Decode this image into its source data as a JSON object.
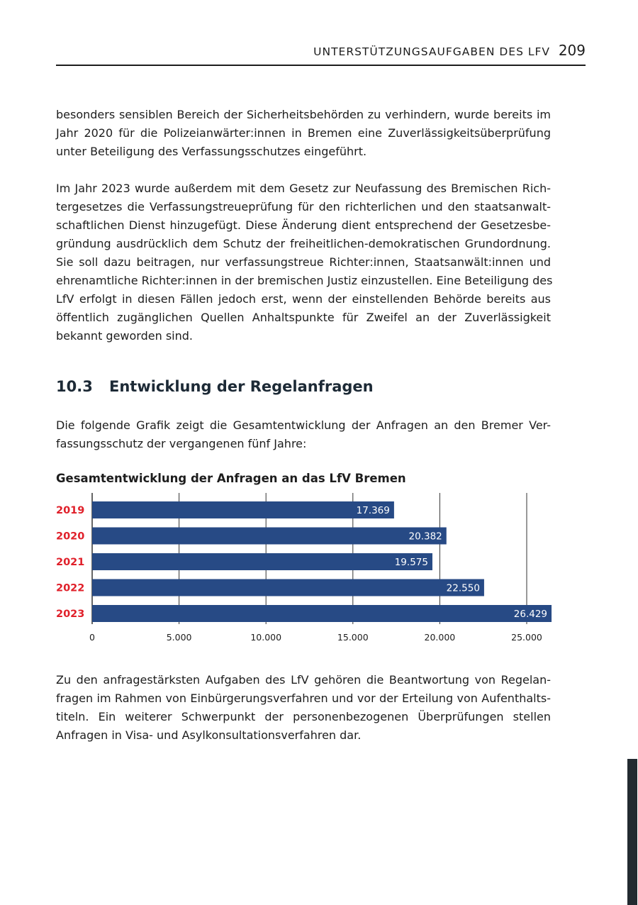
{
  "header": {
    "title": "UNTERSTÜTZUNGSAUFGABEN DES LFV",
    "page": "209"
  },
  "paragraphs": [
    [
      "besonders sensiblen Bereich der Sicherheitsbehörden zu verhindern, wurde bereits im",
      "Jahr 2020 für die Polizeianwärter:innen in Bremen eine Zuverlässigkeitsüberprüfung",
      "unter Beteiligung des Verfassungsschutzes eingeführt."
    ],
    [
      "Im Jahr 2023 wurde außerdem mit dem Gesetz zur Neufassung des Bremischen Rich-",
      "tergesetzes die Verfassungstreueprüfung für den richterlichen und den staatsanwalt-",
      "schaftlichen Dienst hinzugefügt. Diese Änderung dient entsprechend der Gesetzesbe-",
      "gründung ausdrücklich dem Schutz der freiheitlichen-demokratischen Grundordnung.",
      "Sie soll dazu beitragen, nur verfassungstreue Richter:innen, Staatsanwält:innen und",
      "ehrenamtliche Richter:innen in der bremischen Justiz einzustellen. Eine Beteiligung des",
      "LfV erfolgt in diesen Fällen jedoch erst, wenn der einstellenden Behörde bereits aus",
      "öffentlich zugänglichen Quellen Anhaltspunkte für Zweifel an der Zuverlässigkeit",
      "bekannt geworden sind."
    ],
    [
      "Die folgende Grafik zeigt die Gesamtentwicklung der Anfragen an den Bremer Ver-",
      "fassungsschutz der vergangenen fünf Jahre:"
    ],
    [
      "Zu den anfragestärksten Aufgaben des LfV gehören die Beantwortung von Regelan-",
      "fragen im Rahmen von Einbürgerungsverfahren und vor der Erteilung von Aufenthalts-",
      "titeln. Ein weiterer Schwerpunkt der personenbezogenen Überprüfungen stellen",
      "Anfragen in Visa- und Asylkonsultationsverfahren dar."
    ]
  ],
  "section": {
    "number": "10.3",
    "title": "Entwicklung der Regelanfragen"
  },
  "chart_data": {
    "type": "bar",
    "orientation": "horizontal",
    "title": "Gesamtentwicklung der Anfragen an das LfV Bremen",
    "categories": [
      "2019",
      "2020",
      "2021",
      "2022",
      "2023"
    ],
    "values": [
      17369,
      20382,
      19575,
      22550,
      26429
    ],
    "value_labels": [
      "17.369",
      "20.382",
      "19.575",
      "22.550",
      "26.429"
    ],
    "xticks": [
      0,
      5000,
      10000,
      15000,
      20000,
      25000
    ],
    "xtick_labels": [
      "0",
      "5.000",
      "10.000",
      "15.000",
      "20.000",
      "25.000"
    ],
    "xlim": [
      0,
      25000
    ],
    "grid": true,
    "bar_color": "#274a85",
    "category_color": "#e0202a"
  }
}
